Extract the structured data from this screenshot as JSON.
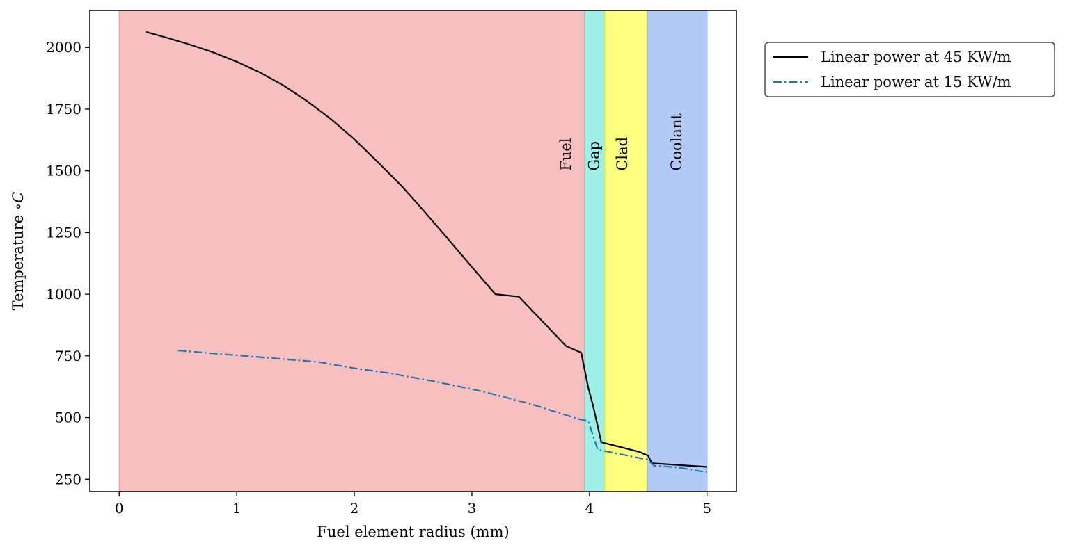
{
  "chart_data": {
    "type": "line",
    "title": "",
    "xlabel": "Fuel element radius (mm)",
    "ylabel": "Temperature",
    "ylabel_unit": "∘C",
    "xlim": [
      -0.25,
      5.25
    ],
    "ylim": [
      200,
      2150
    ],
    "xticks": [
      0,
      1,
      2,
      3,
      4,
      5
    ],
    "yticks": [
      250,
      500,
      750,
      1000,
      1250,
      1500,
      1750,
      2000
    ],
    "grid": false,
    "legend_position": "outside-top-right",
    "regions": [
      {
        "label": "Fuel",
        "x0": 0.0,
        "x1": 3.96,
        "color": "#f08080",
        "label_x": 3.8,
        "label_y": 1500
      },
      {
        "label": "Gap",
        "x0": 3.96,
        "x1": 4.13,
        "color": "#40e0d0",
        "label_x": 4.04,
        "label_y": 1500
      },
      {
        "label": "Clad",
        "x0": 4.13,
        "x1": 4.49,
        "color": "#ffff00",
        "label_x": 4.28,
        "label_y": 1500
      },
      {
        "label": "Coolant",
        "x0": 4.49,
        "x1": 5.0,
        "color": "#6495ed",
        "label_x": 4.74,
        "label_y": 1500
      }
    ],
    "series": [
      {
        "name": "Linear power at 45 KW/m",
        "color": "#000000",
        "style": "solid",
        "x": [
          0.23,
          0.4,
          0.6,
          0.8,
          1.0,
          1.2,
          1.4,
          1.6,
          1.8,
          2.0,
          2.2,
          2.4,
          2.55,
          2.75,
          3.0,
          3.2,
          3.4,
          3.6,
          3.8,
          3.93,
          3.99,
          4.03,
          4.1,
          4.43,
          4.5,
          4.53,
          5.0
        ],
        "y": [
          2063,
          2040,
          2012,
          1980,
          1942,
          1898,
          1845,
          1782,
          1710,
          1628,
          1535,
          1440,
          1360,
          1250,
          1110,
          1000,
          990,
          890,
          790,
          763,
          620,
          550,
          400,
          360,
          345,
          315,
          300
        ]
      },
      {
        "name": "Linear power at 15 KW/m",
        "color": "#1f77b4",
        "style": "dashdot",
        "x": [
          0.5,
          0.8,
          1.2,
          1.7,
          2.0,
          2.3,
          2.7,
          3.1,
          3.5,
          3.7,
          3.9,
          3.99,
          4.07,
          4.49,
          4.55,
          4.75,
          4.95,
          5.0
        ],
        "y": [
          772,
          760,
          745,
          725,
          700,
          680,
          645,
          605,
          555,
          525,
          495,
          485,
          370,
          330,
          305,
          298,
          282,
          280
        ]
      }
    ]
  }
}
